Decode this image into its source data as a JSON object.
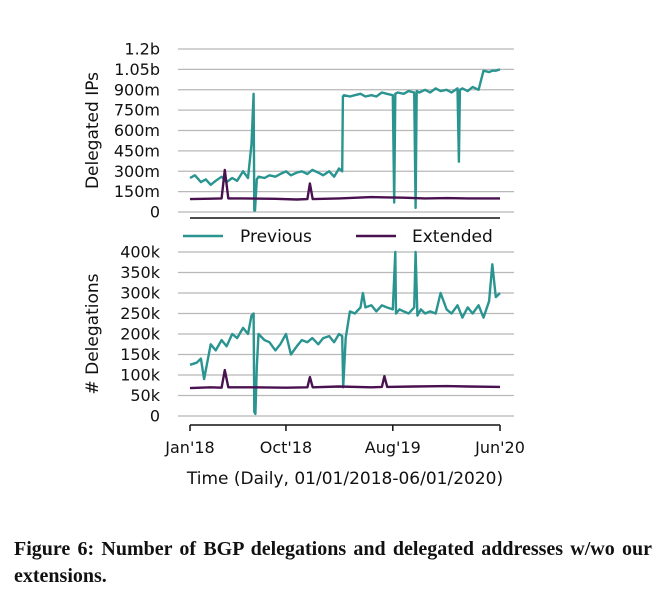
{
  "chart_data": [
    {
      "type": "line",
      "ylabel": "Delegated IPs",
      "ylim": [
        0,
        1200000000
      ],
      "yticks": [
        0,
        150000000,
        300000000,
        450000000,
        600000000,
        750000000,
        900000000,
        1050000000,
        1200000000
      ],
      "ytick_labels": [
        "0",
        "150m",
        "300m",
        "450m",
        "600m",
        "750m",
        "900m",
        "1.05b",
        "1.2b"
      ],
      "grid": "horizontal",
      "series": [
        {
          "name": "Previous",
          "color": "#2a9490",
          "x": [
            "2018-01-01",
            "2018-01-15",
            "2018-02-01",
            "2018-02-15",
            "2018-03-01",
            "2018-03-15",
            "2018-04-01",
            "2018-04-15",
            "2018-05-01",
            "2018-05-15",
            "2018-06-01",
            "2018-06-15",
            "2018-06-25",
            "2018-07-01",
            "2018-07-03",
            "2018-07-05",
            "2018-07-10",
            "2018-07-15",
            "2018-08-01",
            "2018-08-15",
            "2018-09-01",
            "2018-09-15",
            "2018-10-01",
            "2018-10-15",
            "2018-11-01",
            "2018-11-15",
            "2018-12-01",
            "2018-12-15",
            "2019-01-01",
            "2019-01-15",
            "2019-02-01",
            "2019-02-15",
            "2019-03-01",
            "2019-03-10",
            "2019-03-12",
            "2019-03-15",
            "2019-04-01",
            "2019-04-15",
            "2019-05-01",
            "2019-05-15",
            "2019-06-01",
            "2019-06-15",
            "2019-07-01",
            "2019-07-15",
            "2019-08-01",
            "2019-08-05",
            "2019-08-08",
            "2019-08-15",
            "2019-09-01",
            "2019-09-15",
            "2019-10-01",
            "2019-10-05",
            "2019-10-08",
            "2019-10-15",
            "2019-11-01",
            "2019-11-15",
            "2019-12-01",
            "2019-12-15",
            "2020-01-01",
            "2020-01-15",
            "2020-02-01",
            "2020-02-05",
            "2020-02-08",
            "2020-02-15",
            "2020-03-01",
            "2020-03-15",
            "2020-04-01",
            "2020-04-15",
            "2020-05-01",
            "2020-05-10",
            "2020-05-20",
            "2020-06-01"
          ],
          "values": [
            250000000,
            270000000,
            220000000,
            240000000,
            200000000,
            230000000,
            260000000,
            220000000,
            250000000,
            230000000,
            300000000,
            250000000,
            500000000,
            870000000,
            10000000,
            10000000,
            240000000,
            260000000,
            250000000,
            270000000,
            260000000,
            280000000,
            300000000,
            270000000,
            290000000,
            300000000,
            280000000,
            310000000,
            290000000,
            270000000,
            300000000,
            260000000,
            320000000,
            300000000,
            850000000,
            860000000,
            850000000,
            860000000,
            870000000,
            850000000,
            860000000,
            850000000,
            880000000,
            870000000,
            860000000,
            70000000,
            870000000,
            880000000,
            870000000,
            890000000,
            880000000,
            30000000,
            890000000,
            880000000,
            900000000,
            880000000,
            910000000,
            890000000,
            900000000,
            880000000,
            910000000,
            370000000,
            900000000,
            910000000,
            890000000,
            920000000,
            900000000,
            1040000000,
            1030000000,
            1040000000,
            1040000000,
            1050000000
          ]
        },
        {
          "name": "Extended",
          "color": "#4a1150",
          "x": [
            "2018-01-01",
            "2018-03-01",
            "2018-04-01",
            "2018-04-10",
            "2018-04-20",
            "2018-06-01",
            "2018-09-01",
            "2018-11-01",
            "2018-12-01",
            "2018-12-08",
            "2018-12-16",
            "2019-03-01",
            "2019-06-01",
            "2019-09-01",
            "2019-11-01",
            "2020-01-01",
            "2020-03-01",
            "2020-06-01"
          ],
          "values": [
            95000000,
            98000000,
            100000000,
            310000000,
            100000000,
            100000000,
            97000000,
            92000000,
            95000000,
            210000000,
            95000000,
            100000000,
            110000000,
            105000000,
            100000000,
            102000000,
            100000000,
            100000000
          ]
        }
      ]
    },
    {
      "type": "line",
      "xlabel": "Time (Daily, 01/01/2018-06/01/2020)",
      "ylabel": "# Delegations",
      "ylim": [
        0,
        400000
      ],
      "yticks": [
        0,
        50000,
        100000,
        150000,
        200000,
        250000,
        300000,
        350000,
        400000
      ],
      "ytick_labels": [
        "0",
        "50k",
        "100k",
        "150k",
        "200k",
        "250k",
        "300k",
        "350k",
        "400k"
      ],
      "xticks": [
        "2018-01-01",
        "2018-10-01",
        "2019-08-01",
        "2020-06-01"
      ],
      "xtick_labels": [
        "Jan'18",
        "Oct'18",
        "Aug'19",
        "Jun'20"
      ],
      "grid": "horizontal",
      "series": [
        {
          "name": "Previous",
          "color": "#2a9490",
          "x": [
            "2018-01-01",
            "2018-01-20",
            "2018-02-01",
            "2018-02-10",
            "2018-03-01",
            "2018-03-15",
            "2018-04-01",
            "2018-04-15",
            "2018-05-01",
            "2018-05-15",
            "2018-06-01",
            "2018-06-15",
            "2018-06-25",
            "2018-07-01",
            "2018-07-03",
            "2018-07-06",
            "2018-07-10",
            "2018-07-15",
            "2018-08-01",
            "2018-08-15",
            "2018-09-01",
            "2018-09-15",
            "2018-10-01",
            "2018-10-15",
            "2018-11-01",
            "2018-11-15",
            "2018-12-01",
            "2018-12-15",
            "2019-01-01",
            "2019-01-15",
            "2019-02-01",
            "2019-02-15",
            "2019-03-01",
            "2019-03-10",
            "2019-03-13",
            "2019-03-20",
            "2019-04-01",
            "2019-04-15",
            "2019-05-01",
            "2019-05-08",
            "2019-05-15",
            "2019-06-01",
            "2019-06-15",
            "2019-07-01",
            "2019-07-15",
            "2019-08-01",
            "2019-08-08",
            "2019-08-10",
            "2019-08-20",
            "2019-09-01",
            "2019-09-15",
            "2019-10-01",
            "2019-10-05",
            "2019-10-10",
            "2019-10-20",
            "2019-11-01",
            "2019-11-15",
            "2019-12-01",
            "2019-12-15",
            "2020-01-01",
            "2020-01-15",
            "2020-02-01",
            "2020-02-15",
            "2020-03-01",
            "2020-03-15",
            "2020-04-01",
            "2020-04-15",
            "2020-05-01",
            "2020-05-10",
            "2020-05-20",
            "2020-06-01"
          ],
          "values": [
            125000,
            130000,
            140000,
            90000,
            175000,
            160000,
            185000,
            170000,
            200000,
            190000,
            215000,
            200000,
            245000,
            250000,
            10000,
            5000,
            120000,
            200000,
            185000,
            180000,
            160000,
            175000,
            200000,
            150000,
            170000,
            185000,
            180000,
            190000,
            175000,
            190000,
            195000,
            180000,
            200000,
            195000,
            70000,
            190000,
            255000,
            250000,
            265000,
            300000,
            265000,
            270000,
            255000,
            270000,
            265000,
            260000,
            400000,
            250000,
            260000,
            255000,
            250000,
            265000,
            400000,
            245000,
            260000,
            250000,
            255000,
            250000,
            300000,
            260000,
            250000,
            270000,
            240000,
            265000,
            250000,
            270000,
            240000,
            280000,
            370000,
            290000,
            300000
          ]
        },
        {
          "name": "Extended",
          "color": "#4a1150",
          "x": [
            "2018-01-01",
            "2018-03-01",
            "2018-04-01",
            "2018-04-10",
            "2018-04-20",
            "2018-07-01",
            "2018-10-01",
            "2018-12-01",
            "2018-12-08",
            "2018-12-16",
            "2019-03-01",
            "2019-06-01",
            "2019-07-01",
            "2019-07-08",
            "2019-07-16",
            "2019-10-01",
            "2020-01-01",
            "2020-03-01",
            "2020-06-01"
          ],
          "values": [
            68000,
            70000,
            69000,
            112000,
            70000,
            70000,
            69000,
            70000,
            95000,
            70000,
            72000,
            70000,
            71000,
            97000,
            71000,
            72000,
            73000,
            72000,
            71000
          ]
        }
      ]
    }
  ],
  "legend": {
    "placement": "between-panels",
    "items": [
      {
        "label": "Previous",
        "color": "#2a9490"
      },
      {
        "label": "Extended",
        "color": "#4a1150"
      }
    ]
  },
  "caption": "Figure 6: Number of BGP delegations and delegated addresses w/wo our extensions."
}
